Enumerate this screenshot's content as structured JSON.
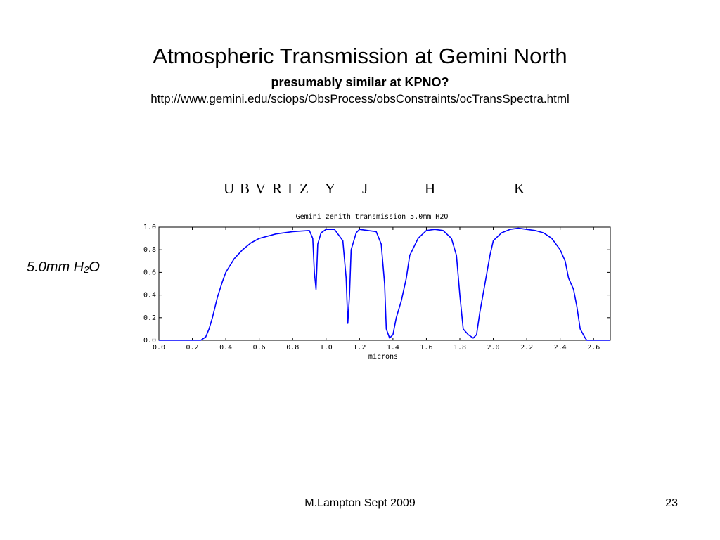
{
  "slide": {
    "title": "Atmospheric Transmission at Gemini North",
    "subtitle": "presumably similar at KPNO?",
    "url": "http://www.gemini.edu/sciops/ObsProcess/obsConstraints/ocTransSpectra.html",
    "side_label": {
      "main": "5.0mm H",
      "sub": "2",
      "tail": "O"
    },
    "bands": [
      "U",
      "B",
      "V",
      "R",
      "I",
      "Z",
      "Y",
      "J",
      "H",
      "K"
    ],
    "footer": "M.Lampton Sept 2009",
    "page_number": "23"
  },
  "chart_data": {
    "type": "line",
    "title": "Gemini zenith transmission 5.0mm H2O",
    "xlabel": "microns",
    "ylabel": "",
    "xlim": [
      0.0,
      2.7
    ],
    "ylim": [
      0.0,
      1.0
    ],
    "xticks": [
      "0.0",
      "0.2",
      "0.4",
      "0.6",
      "0.8",
      "1.0",
      "1.2",
      "1.4",
      "1.6",
      "1.8",
      "2.0",
      "2.2",
      "2.4",
      "2.6"
    ],
    "yticks": [
      "0.0",
      "0.2",
      "0.4",
      "0.6",
      "0.8",
      "1.0"
    ],
    "color": "#0000ff",
    "series": [
      {
        "x": [
          0.0,
          0.1,
          0.2,
          0.25,
          0.28,
          0.3,
          0.32,
          0.35,
          0.38,
          0.4,
          0.45,
          0.5,
          0.55,
          0.6,
          0.7,
          0.8,
          0.9,
          0.92,
          0.93,
          0.94,
          0.95,
          0.97,
          1.0,
          1.05,
          1.1,
          1.12,
          1.13,
          1.14,
          1.15,
          1.18,
          1.2,
          1.25,
          1.3,
          1.33,
          1.35,
          1.36,
          1.38,
          1.4,
          1.42,
          1.45,
          1.48,
          1.5,
          1.55,
          1.6,
          1.65,
          1.7,
          1.75,
          1.78,
          1.8,
          1.82,
          1.85,
          1.88,
          1.9,
          1.92,
          1.95,
          1.98,
          2.0,
          2.05,
          2.1,
          2.15,
          2.2,
          2.25,
          2.3,
          2.35,
          2.4,
          2.43,
          2.45,
          2.48,
          2.5,
          2.52,
          2.55,
          2.56,
          2.58,
          2.6,
          2.7
        ],
        "y": [
          0.0,
          0.0,
          0.0,
          0.0,
          0.03,
          0.1,
          0.2,
          0.38,
          0.52,
          0.6,
          0.72,
          0.8,
          0.86,
          0.9,
          0.94,
          0.96,
          0.97,
          0.9,
          0.6,
          0.45,
          0.85,
          0.95,
          0.98,
          0.98,
          0.88,
          0.55,
          0.15,
          0.4,
          0.8,
          0.95,
          0.98,
          0.97,
          0.96,
          0.85,
          0.5,
          0.1,
          0.02,
          0.05,
          0.2,
          0.35,
          0.55,
          0.75,
          0.9,
          0.97,
          0.98,
          0.97,
          0.9,
          0.75,
          0.4,
          0.1,
          0.05,
          0.02,
          0.05,
          0.25,
          0.5,
          0.75,
          0.88,
          0.95,
          0.98,
          0.99,
          0.98,
          0.97,
          0.95,
          0.9,
          0.8,
          0.7,
          0.55,
          0.45,
          0.3,
          0.1,
          0.02,
          0.0,
          0.0,
          0.0,
          0.0
        ]
      }
    ]
  }
}
